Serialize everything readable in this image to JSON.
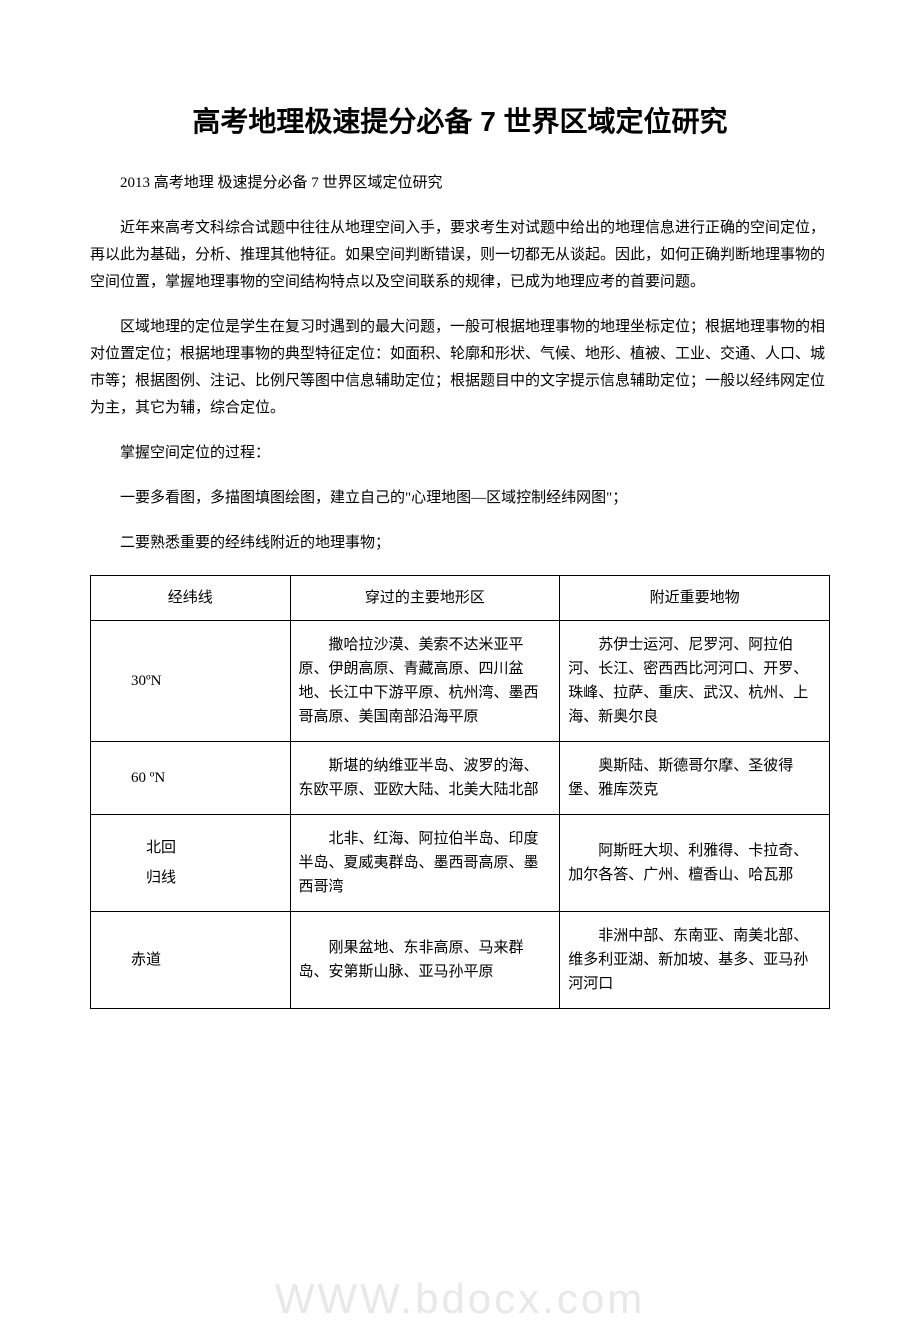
{
  "title": "高考地理极速提分必备 7 世界区域定位研究",
  "para1": "2013 高考地理 极速提分必备 7 世界区域定位研究",
  "para2": "近年来高考文科综合试题中往往从地理空间入手，要求考生对试题中给出的地理信息进行正确的空间定位，再以此为基础，分析、推理其他特征。如果空间判断错误，则一切都无从谈起。因此，如何正确判断地理事物的空间位置，掌握地理事物的空间结构特点以及空间联系的规律，已成为地理应考的首要问题。",
  "para3": "区域地理的定位是学生在复习时遇到的最大问题，一般可根据地理事物的地理坐标定位；根据地理事物的相对位置定位；根据地理事物的典型特征定位：如面积、轮廓和形状、气候、地形、植被、工业、交通、人口、城市等；根据图例、注记、比例尺等图中信息辅助定位；根据题目中的文字提示信息辅助定位；一般以经纬网定位为主，其它为辅，综合定位。",
  "para4": "掌握空间定位的过程：",
  "para5": "一要多看图，多描图填图绘图，建立自己的\"心理地图—区域控制经纬网图\"；",
  "para6": "二要熟悉重要的经纬线附近的地理事物；",
  "watermark": "WWW.bdocx.com",
  "table": {
    "columns": [
      "经纬线",
      "穿过的主要地形区",
      "附近重要地物"
    ],
    "rows": [
      {
        "c1": "30ºN",
        "c2": "撒哈拉沙漠、美索不达米亚平原、伊朗高原、青藏高原、四川盆地、长江中下游平原、杭州湾、墨西哥高原、美国南部沿海平原",
        "c3": "苏伊士运河、尼罗河、阿拉伯河、长江、密西西比河河口、开罗、珠峰、拉萨、重庆、武汉、杭州、上海、新奥尔良"
      },
      {
        "c1": "60 ºN",
        "c2": "斯堪的纳维亚半岛、波罗的海、东欧平原、亚欧大陆、北美大陆北部",
        "c3": "奥斯陆、斯德哥尔摩、圣彼得堡、雅库茨克"
      },
      {
        "c1_line1": "北回",
        "c1_line2": "归线",
        "c2": "北非、红海、阿拉伯半岛、印度半岛、夏威夷群岛、墨西哥高原、墨西哥湾",
        "c3": "阿斯旺大坝、利雅得、卡拉奇、加尔各答、广州、檀香山、哈瓦那"
      },
      {
        "c1": "赤道",
        "c2": "刚果盆地、东非高原、马来群岛、安第斯山脉、亚马孙平原",
        "c3": "非洲中部、东南亚、南美北部、维多利亚湖、新加坡、基多、亚马孙河河口"
      }
    ]
  }
}
